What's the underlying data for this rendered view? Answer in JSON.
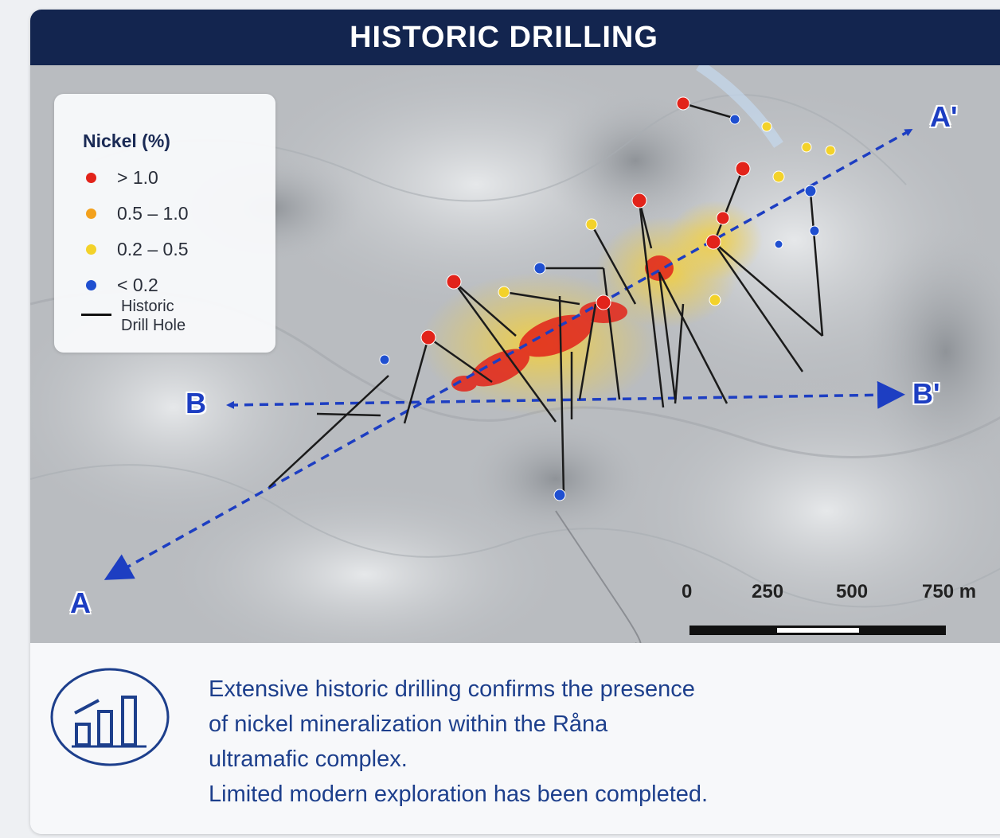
{
  "header": {
    "title": "HISTORIC DRILLING"
  },
  "legend": {
    "title": "Nickel (%)",
    "items": [
      {
        "label": "> 1.0",
        "color": "#e2231a"
      },
      {
        "label": "0.5 – 1.0",
        "color": "#f3a11d"
      },
      {
        "label": "0.2 – 0.5",
        "color": "#f3d22a"
      },
      {
        "label": "< 0.2",
        "color": "#1f4fd0"
      }
    ],
    "drill_hole_label_line1": "Historic",
    "drill_hole_label_line2": "Drill Hole"
  },
  "sections": {
    "a_start": "A",
    "a_end": "A'",
    "b_start": "B",
    "b_end": "B'"
  },
  "scale_bar": {
    "ticks": [
      "0",
      "250",
      "500",
      "750 m"
    ]
  },
  "footer": {
    "icon": "bar-chart-growth-icon",
    "lines": [
      "Extensive historic drilling confirms the presence",
      "of nickel mineralization within the Råna",
      "ultramafic complex.",
      "Limited modern exploration has been completed."
    ]
  },
  "colors": {
    "header_bg": "#13254f",
    "accent_blue": "#1d3ec2",
    "text_blue": "#1d3f8c"
  }
}
